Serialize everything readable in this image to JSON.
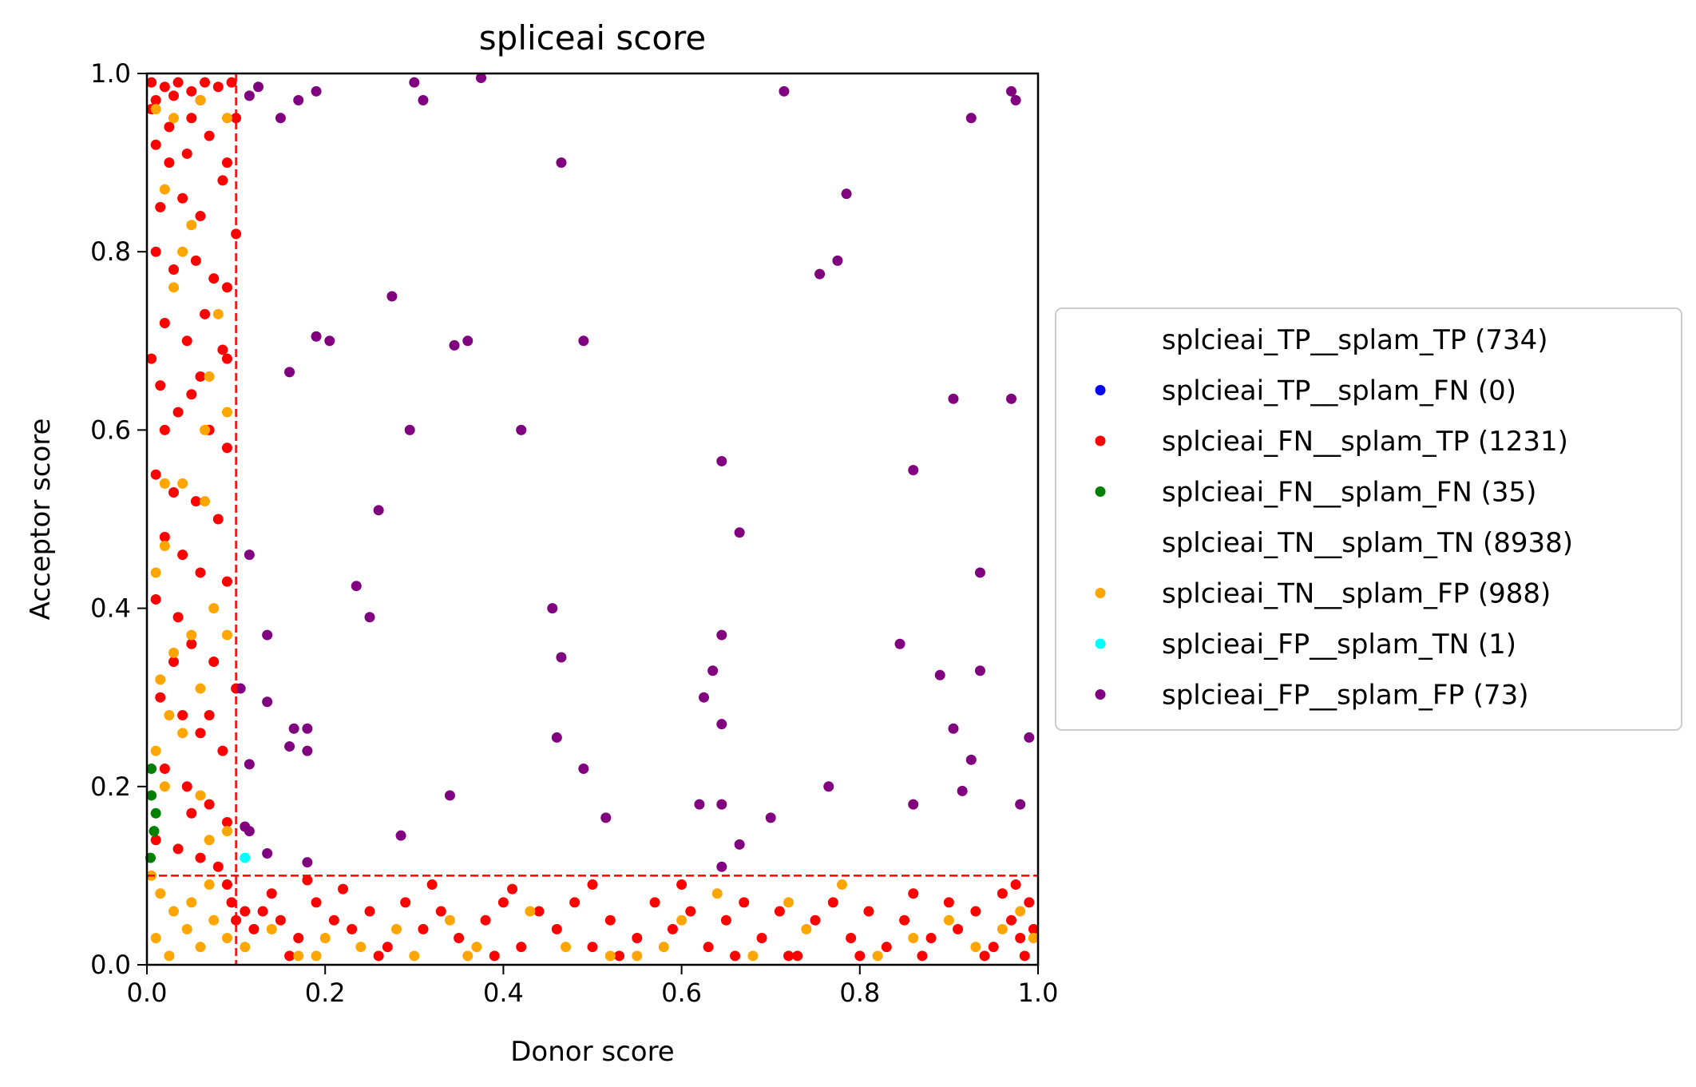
{
  "chart_data": {
    "type": "scatter",
    "title": "spliceai score",
    "xlabel": "Donor score",
    "ylabel": "Acceptor score",
    "xlim": [
      0,
      1
    ],
    "ylim": [
      0,
      1
    ],
    "xticks": [
      "0.0",
      "0.2",
      "0.4",
      "0.6",
      "0.8",
      "1.0"
    ],
    "yticks": [
      "0.0",
      "0.2",
      "0.4",
      "0.6",
      "0.8",
      "1.0"
    ],
    "grid": false,
    "legend_position": "center-right, outside",
    "thresholds": {
      "x": 0.1,
      "y": 0.1,
      "color": "#ff0000",
      "style": "dashed"
    },
    "series": [
      {
        "name": "splcieai_TP__splam_TP (734)",
        "color": "#ffffff",
        "points": []
      },
      {
        "name": "splcieai_TP__splam_FN (0)",
        "color": "#0000ff",
        "points": []
      },
      {
        "name": "splcieai_FN__splam_TP (1231)",
        "color": "#ff0000",
        "points": [
          [
            0.005,
            0.99
          ],
          [
            0.02,
            0.985
          ],
          [
            0.035,
            0.99
          ],
          [
            0.05,
            0.98
          ],
          [
            0.065,
            0.99
          ],
          [
            0.08,
            0.985
          ],
          [
            0.095,
            0.99
          ],
          [
            0.01,
            0.97
          ],
          [
            0.03,
            0.975
          ],
          [
            0.06,
            0.97
          ],
          [
            0.01,
            0.92
          ],
          [
            0.025,
            0.9
          ],
          [
            0.045,
            0.91
          ],
          [
            0.07,
            0.93
          ],
          [
            0.09,
            0.9
          ],
          [
            0.015,
            0.85
          ],
          [
            0.04,
            0.86
          ],
          [
            0.06,
            0.84
          ],
          [
            0.085,
            0.88
          ],
          [
            0.1,
            0.82
          ],
          [
            0.01,
            0.8
          ],
          [
            0.03,
            0.78
          ],
          [
            0.055,
            0.79
          ],
          [
            0.075,
            0.77
          ],
          [
            0.09,
            0.76
          ],
          [
            0.02,
            0.72
          ],
          [
            0.045,
            0.7
          ],
          [
            0.065,
            0.73
          ],
          [
            0.085,
            0.69
          ],
          [
            0.005,
            0.68
          ],
          [
            0.015,
            0.65
          ],
          [
            0.035,
            0.62
          ],
          [
            0.05,
            0.64
          ],
          [
            0.07,
            0.6
          ],
          [
            0.09,
            0.58
          ],
          [
            0.01,
            0.55
          ],
          [
            0.03,
            0.53
          ],
          [
            0.055,
            0.52
          ],
          [
            0.08,
            0.5
          ],
          [
            0.02,
            0.48
          ],
          [
            0.04,
            0.46
          ],
          [
            0.06,
            0.44
          ],
          [
            0.09,
            0.43
          ],
          [
            0.01,
            0.41
          ],
          [
            0.035,
            0.39
          ],
          [
            0.05,
            0.36
          ],
          [
            0.075,
            0.34
          ],
          [
            0.1,
            0.31
          ],
          [
            0.015,
            0.3
          ],
          [
            0.04,
            0.28
          ],
          [
            0.06,
            0.26
          ],
          [
            0.085,
            0.24
          ],
          [
            0.02,
            0.22
          ],
          [
            0.045,
            0.2
          ],
          [
            0.07,
            0.18
          ],
          [
            0.09,
            0.16
          ],
          [
            0.01,
            0.14
          ],
          [
            0.035,
            0.13
          ],
          [
            0.06,
            0.12
          ],
          [
            0.08,
            0.11
          ],
          [
            0.005,
            0.96
          ],
          [
            0.025,
            0.94
          ],
          [
            0.05,
            0.95
          ],
          [
            0.1,
            0.95
          ],
          [
            0.02,
            0.6
          ],
          [
            0.06,
            0.66
          ],
          [
            0.09,
            0.68
          ],
          [
            0.03,
            0.34
          ],
          [
            0.07,
            0.28
          ],
          [
            0.05,
            0.17
          ],
          [
            0.09,
            0.09
          ],
          [
            0.095,
            0.07
          ],
          [
            0.1,
            0.05
          ],
          [
            0.11,
            0.06
          ],
          [
            0.12,
            0.04
          ],
          [
            0.13,
            0.06
          ],
          [
            0.15,
            0.05
          ],
          [
            0.17,
            0.03
          ],
          [
            0.19,
            0.07
          ],
          [
            0.21,
            0.05
          ],
          [
            0.23,
            0.04
          ],
          [
            0.25,
            0.06
          ],
          [
            0.27,
            0.02
          ],
          [
            0.29,
            0.07
          ],
          [
            0.31,
            0.04
          ],
          [
            0.33,
            0.06
          ],
          [
            0.35,
            0.03
          ],
          [
            0.38,
            0.05
          ],
          [
            0.4,
            0.07
          ],
          [
            0.42,
            0.02
          ],
          [
            0.44,
            0.06
          ],
          [
            0.46,
            0.04
          ],
          [
            0.48,
            0.07
          ],
          [
            0.5,
            0.02
          ],
          [
            0.52,
            0.05
          ],
          [
            0.55,
            0.03
          ],
          [
            0.57,
            0.07
          ],
          [
            0.59,
            0.04
          ],
          [
            0.61,
            0.06
          ],
          [
            0.63,
            0.02
          ],
          [
            0.65,
            0.05
          ],
          [
            0.67,
            0.07
          ],
          [
            0.69,
            0.03
          ],
          [
            0.71,
            0.06
          ],
          [
            0.73,
            0.01
          ],
          [
            0.75,
            0.05
          ],
          [
            0.77,
            0.07
          ],
          [
            0.79,
            0.03
          ],
          [
            0.81,
            0.06
          ],
          [
            0.83,
            0.02
          ],
          [
            0.85,
            0.05
          ],
          [
            0.86,
            0.08
          ],
          [
            0.88,
            0.03
          ],
          [
            0.9,
            0.07
          ],
          [
            0.91,
            0.04
          ],
          [
            0.93,
            0.06
          ],
          [
            0.95,
            0.02
          ],
          [
            0.96,
            0.08
          ],
          [
            0.97,
            0.05
          ],
          [
            0.98,
            0.03
          ],
          [
            0.99,
            0.07
          ],
          [
            0.995,
            0.04
          ],
          [
            0.985,
            0.01
          ],
          [
            0.975,
            0.09
          ],
          [
            0.94,
            0.01
          ],
          [
            0.87,
            0.01
          ],
          [
            0.8,
            0.01
          ],
          [
            0.72,
            0.01
          ],
          [
            0.6,
            0.09
          ],
          [
            0.5,
            0.09
          ],
          [
            0.41,
            0.085
          ],
          [
            0.32,
            0.09
          ],
          [
            0.22,
            0.085
          ],
          [
            0.18,
            0.095
          ],
          [
            0.14,
            0.08
          ],
          [
            0.66,
            0.01
          ],
          [
            0.53,
            0.01
          ],
          [
            0.39,
            0.01
          ],
          [
            0.26,
            0.01
          ],
          [
            0.16,
            0.01
          ]
        ]
      },
      {
        "name": "splcieai_FN__splam_FN (35)",
        "color": "#008000",
        "points": [
          [
            0.005,
            0.19
          ],
          [
            0.01,
            0.17
          ],
          [
            0.005,
            0.22
          ],
          [
            0.008,
            0.15
          ],
          [
            0.004,
            0.12
          ]
        ]
      },
      {
        "name": "splcieai_TN__splam_TN (8938)",
        "color": "#ffffff",
        "points": []
      },
      {
        "name": "splcieai_TN__splam_FP (988)",
        "color": "#ffa500",
        "points": [
          [
            0.01,
            0.96
          ],
          [
            0.03,
            0.95
          ],
          [
            0.06,
            0.97
          ],
          [
            0.09,
            0.95
          ],
          [
            0.02,
            0.87
          ],
          [
            0.05,
            0.83
          ],
          [
            0.04,
            0.8
          ],
          [
            0.08,
            0.73
          ],
          [
            0.07,
            0.66
          ],
          [
            0.09,
            0.62
          ],
          [
            0.03,
            0.76
          ],
          [
            0.02,
            0.54
          ],
          [
            0.04,
            0.54
          ],
          [
            0.065,
            0.6
          ],
          [
            0.065,
            0.52
          ],
          [
            0.02,
            0.47
          ],
          [
            0.01,
            0.44
          ],
          [
            0.075,
            0.4
          ],
          [
            0.05,
            0.37
          ],
          [
            0.09,
            0.37
          ],
          [
            0.03,
            0.35
          ],
          [
            0.015,
            0.32
          ],
          [
            0.06,
            0.31
          ],
          [
            0.025,
            0.28
          ],
          [
            0.04,
            0.26
          ],
          [
            0.01,
            0.24
          ],
          [
            0.02,
            0.2
          ],
          [
            0.06,
            0.19
          ],
          [
            0.07,
            0.14
          ],
          [
            0.09,
            0.15
          ],
          [
            0.005,
            0.1
          ],
          [
            0.015,
            0.08
          ],
          [
            0.03,
            0.06
          ],
          [
            0.045,
            0.04
          ],
          [
            0.06,
            0.02
          ],
          [
            0.075,
            0.05
          ],
          [
            0.09,
            0.03
          ],
          [
            0.01,
            0.03
          ],
          [
            0.025,
            0.01
          ],
          [
            0.05,
            0.07
          ],
          [
            0.07,
            0.09
          ],
          [
            0.11,
            0.02
          ],
          [
            0.14,
            0.04
          ],
          [
            0.17,
            0.01
          ],
          [
            0.2,
            0.03
          ],
          [
            0.24,
            0.02
          ],
          [
            0.28,
            0.04
          ],
          [
            0.3,
            0.01
          ],
          [
            0.34,
            0.05
          ],
          [
            0.37,
            0.02
          ],
          [
            0.43,
            0.06
          ],
          [
            0.47,
            0.02
          ],
          [
            0.52,
            0.01
          ],
          [
            0.58,
            0.02
          ],
          [
            0.6,
            0.05
          ],
          [
            0.64,
            0.08
          ],
          [
            0.68,
            0.01
          ],
          [
            0.72,
            0.07
          ],
          [
            0.74,
            0.04
          ],
          [
            0.78,
            0.09
          ],
          [
            0.82,
            0.01
          ],
          [
            0.86,
            0.03
          ],
          [
            0.9,
            0.05
          ],
          [
            0.93,
            0.02
          ],
          [
            0.96,
            0.04
          ],
          [
            0.98,
            0.06
          ],
          [
            0.995,
            0.03
          ],
          [
            0.55,
            0.01
          ],
          [
            0.36,
            0.01
          ],
          [
            0.19,
            0.01
          ]
        ]
      },
      {
        "name": "splcieai_FP__splam_TN (1)",
        "color": "#00ffff",
        "points": [
          [
            0.11,
            0.12
          ]
        ]
      },
      {
        "name": "splcieai_FP__splam_FP (73)",
        "color": "#800080",
        "points": [
          [
            0.115,
            0.975
          ],
          [
            0.125,
            0.985
          ],
          [
            0.15,
            0.95
          ],
          [
            0.17,
            0.97
          ],
          [
            0.19,
            0.98
          ],
          [
            0.3,
            0.99
          ],
          [
            0.31,
            0.97
          ],
          [
            0.375,
            0.995
          ],
          [
            0.715,
            0.98
          ],
          [
            0.925,
            0.95
          ],
          [
            0.97,
            0.98
          ],
          [
            0.975,
            0.97
          ],
          [
            0.465,
            0.9
          ],
          [
            0.785,
            0.865
          ],
          [
            0.755,
            0.775
          ],
          [
            0.775,
            0.79
          ],
          [
            0.275,
            0.75
          ],
          [
            0.19,
            0.705
          ],
          [
            0.205,
            0.7
          ],
          [
            0.345,
            0.695
          ],
          [
            0.36,
            0.7
          ],
          [
            0.49,
            0.7
          ],
          [
            0.16,
            0.665
          ],
          [
            0.295,
            0.6
          ],
          [
            0.42,
            0.6
          ],
          [
            0.905,
            0.635
          ],
          [
            0.97,
            0.635
          ],
          [
            0.645,
            0.565
          ],
          [
            0.86,
            0.555
          ],
          [
            0.26,
            0.51
          ],
          [
            0.665,
            0.485
          ],
          [
            0.115,
            0.46
          ],
          [
            0.935,
            0.44
          ],
          [
            0.235,
            0.425
          ],
          [
            0.25,
            0.39
          ],
          [
            0.455,
            0.4
          ],
          [
            0.135,
            0.37
          ],
          [
            0.645,
            0.37
          ],
          [
            0.465,
            0.345
          ],
          [
            0.845,
            0.36
          ],
          [
            0.635,
            0.33
          ],
          [
            0.625,
            0.3
          ],
          [
            0.89,
            0.325
          ],
          [
            0.935,
            0.33
          ],
          [
            0.105,
            0.31
          ],
          [
            0.135,
            0.295
          ],
          [
            0.645,
            0.27
          ],
          [
            0.165,
            0.265
          ],
          [
            0.18,
            0.265
          ],
          [
            0.16,
            0.245
          ],
          [
            0.18,
            0.24
          ],
          [
            0.46,
            0.255
          ],
          [
            0.905,
            0.265
          ],
          [
            0.99,
            0.255
          ],
          [
            0.115,
            0.225
          ],
          [
            0.49,
            0.22
          ],
          [
            0.925,
            0.23
          ],
          [
            0.34,
            0.19
          ],
          [
            0.915,
            0.195
          ],
          [
            0.62,
            0.18
          ],
          [
            0.645,
            0.18
          ],
          [
            0.86,
            0.18
          ],
          [
            0.98,
            0.18
          ],
          [
            0.515,
            0.165
          ],
          [
            0.7,
            0.165
          ],
          [
            0.11,
            0.155
          ],
          [
            0.115,
            0.15
          ],
          [
            0.285,
            0.145
          ],
          [
            0.665,
            0.135
          ],
          [
            0.765,
            0.2
          ],
          [
            0.135,
            0.125
          ],
          [
            0.18,
            0.115
          ],
          [
            0.645,
            0.11
          ]
        ]
      }
    ]
  }
}
